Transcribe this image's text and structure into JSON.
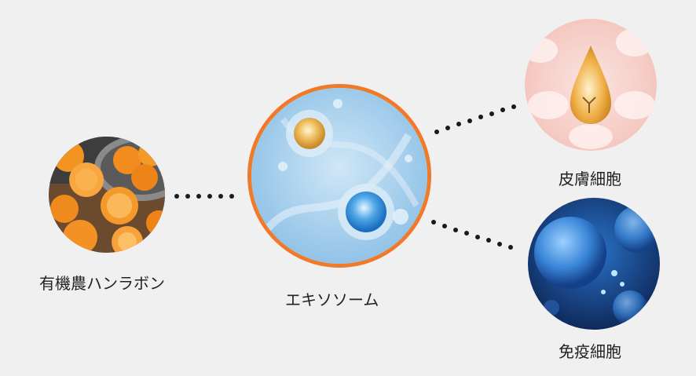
{
  "nodes": {
    "left": {
      "label": "有機農ハンラボン",
      "image": "mandarin-oranges-photo"
    },
    "center": {
      "label": "エキソソーム",
      "image": "exosome-vesicles-illustration",
      "accent": "#f07a2a"
    },
    "top_right": {
      "label": "皮膚細胞",
      "image": "serum-drop-skin-cells-illustration"
    },
    "bottom_right": {
      "label": "免疫細胞",
      "image": "blue-immune-cells-illustration"
    }
  },
  "colors": {
    "background": "#f0f0f0",
    "dots": "#1a1a1a",
    "ring": "#f07a2a"
  }
}
